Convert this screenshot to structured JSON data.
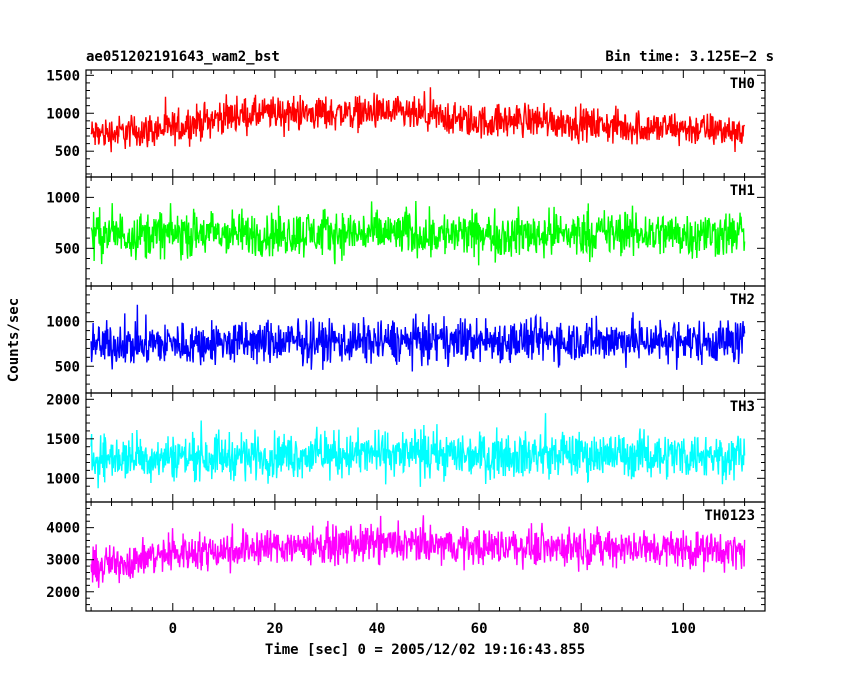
{
  "chart_data": {
    "type": "line",
    "title": "ae051202191643_wam2_bst",
    "subtitle": "Bin time: 3.125E−2 s",
    "xlabel": "Time [sec] 0 = 2005/12/02 19:16:43.855",
    "ylabel": "Counts/sec",
    "xlim": [
      -17,
      116
    ],
    "x_ticks": [
      0,
      20,
      40,
      60,
      80,
      100
    ],
    "x_range_of_data": [
      -16,
      112
    ],
    "grid": false,
    "panels": [
      {
        "name": "TH0",
        "color": "#ff0000",
        "ylim": [
          160,
          1570
        ],
        "y_ticks": [
          500,
          1000,
          1500
        ],
        "baseline": [
          [
            -16,
            720
          ],
          [
            0,
            800
          ],
          [
            10,
            960
          ],
          [
            20,
            1000
          ],
          [
            30,
            1000
          ],
          [
            40,
            1010
          ],
          [
            50,
            960
          ],
          [
            60,
            880
          ],
          [
            70,
            920
          ],
          [
            80,
            860
          ],
          [
            90,
            810
          ],
          [
            100,
            800
          ],
          [
            112,
            760
          ]
        ],
        "noise_amplitude": 330
      },
      {
        "name": "TH1",
        "color": "#00ff00",
        "ylim": [
          130,
          1200
        ],
        "y_ticks": [
          500,
          1000
        ],
        "baseline": [
          [
            -16,
            640
          ],
          [
            20,
            640
          ],
          [
            40,
            650
          ],
          [
            60,
            630
          ],
          [
            80,
            650
          ],
          [
            112,
            640
          ]
        ],
        "noise_amplitude": 330
      },
      {
        "name": "TH2",
        "color": "#0000ff",
        "ylim": [
          200,
          1400
        ],
        "y_ticks": [
          500,
          1000
        ],
        "baseline": [
          [
            -16,
            740
          ],
          [
            20,
            770
          ],
          [
            40,
            780
          ],
          [
            60,
            790
          ],
          [
            80,
            790
          ],
          [
            112,
            780
          ]
        ],
        "noise_amplitude": 360
      },
      {
        "name": "TH3",
        "color": "#00ffff",
        "ylim": [
          700,
          2080
        ],
        "y_ticks": [
          1000,
          1500,
          2000
        ],
        "baseline": [
          [
            -16,
            1260
          ],
          [
            20,
            1290
          ],
          [
            40,
            1310
          ],
          [
            60,
            1300
          ],
          [
            80,
            1300
          ],
          [
            112,
            1290
          ]
        ],
        "noise_amplitude": 420
      },
      {
        "name": "TH0123",
        "color": "#ff00ff",
        "ylim": [
          1400,
          4800
        ],
        "y_ticks": [
          2000,
          3000,
          4000
        ],
        "baseline": [
          [
            -16,
            2750
          ],
          [
            0,
            3200
          ],
          [
            20,
            3420
          ],
          [
            40,
            3480
          ],
          [
            60,
            3420
          ],
          [
            80,
            3400
          ],
          [
            100,
            3330
          ],
          [
            112,
            3250
          ]
        ],
        "noise_amplitude": 850
      }
    ]
  }
}
